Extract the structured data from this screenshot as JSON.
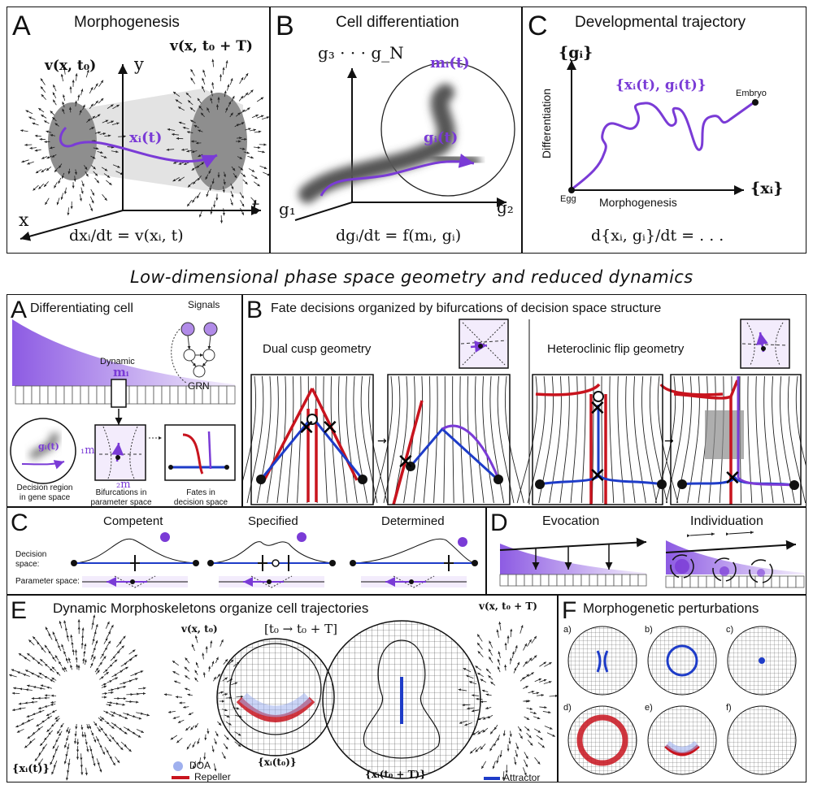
{
  "top": {
    "A": {
      "letter": "A",
      "title": "Morphogenesis",
      "v_t0": "v(x, t₀)",
      "v_t0T": "v(x, t₀ + T)",
      "axis_y": "y",
      "axis_t": "t",
      "axis_x": "x",
      "traj": "xᵢ(t)",
      "equation": "dxᵢ/dt = v(xᵢ, t)"
    },
    "B": {
      "letter": "B",
      "title": "Cell differentiation",
      "axis_g3": "g₃ · · · g_N",
      "axis_g1": "g₁",
      "axis_g2": "g₂",
      "m_label": "mᵢ(t)",
      "g_label": "gᵢ(t)",
      "equation": "dgᵢ/dt = f(mᵢ, gᵢ)"
    },
    "C": {
      "letter": "C",
      "title": "Developmental trajectory",
      "axis_gi": "{gᵢ}",
      "axis_xi": "{xᵢ}",
      "ylabel": "Differentiation",
      "xlabel": "Morphogenesis",
      "traj": "{xᵢ(t), gᵢ(t)}",
      "embryo": "Embryo",
      "egg": "Egg",
      "equation": "d{xᵢ, gᵢ}/dt = . . ."
    }
  },
  "middle_title": "Low-dimensional phase space geometry and reduced dynamics",
  "bottom": {
    "A": {
      "letter": "A",
      "title": "Differentiating cell",
      "signals": "Signals",
      "grn": "GRN",
      "dynamic": "Dynamic",
      "m_label": "mᵢ",
      "g_label": "gᵢ(t)",
      "m1": "₁m",
      "m2": "₂m",
      "cap1": "Decision region\nin gene space",
      "cap2": "Bifurcations in\nparameter space",
      "cap3": "Fates in\ndecision space"
    },
    "B": {
      "letter": "B",
      "title": "Fate decisions organized by bifurcations of decision space structure",
      "sub1": "Dual cusp geometry",
      "sub2": "Heteroclinic flip geometry"
    },
    "C": {
      "letter": "C",
      "states": [
        "Competent",
        "Specified",
        "Determined"
      ],
      "row1": "Decision\nspace:",
      "row2": "Parameter space:"
    },
    "D": {
      "letter": "D",
      "titles": [
        "Evocation",
        "Individuation"
      ]
    },
    "E": {
      "letter": "E",
      "title": "Dynamic Morphoskeletons organize cell trajectories",
      "interval": "[t₀ → t₀ + T]",
      "v_t0": "v(x, t₀)",
      "v_t0T": "v(x, t₀ + T)",
      "xi_t": "{xᵢ(t)}",
      "xi_t0": "{xᵢ(t₀)}",
      "xi_t0T": "{xᵢ(t₀ + T)}",
      "legend_doa": "DOA",
      "legend_repeller": "Repeller",
      "legend_attractor": "Attractor"
    },
    "F": {
      "letter": "F",
      "title": "Morphogenetic perturbations",
      "sub": [
        "a)",
        "b)",
        "c)",
        "d)",
        "e)",
        "f)"
      ]
    }
  },
  "colors": {
    "purple": "#7a3bd6",
    "red": "#c8141e",
    "blue": "#1e3cc8",
    "gray": "#8c8c8c"
  }
}
